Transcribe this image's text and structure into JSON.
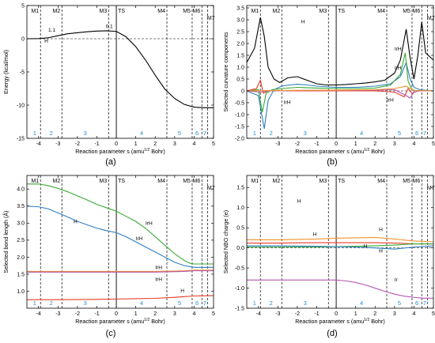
{
  "chart_data": [
    {
      "type": "line",
      "panel_label": "(a)",
      "ylabel": "Energy (kcal/mol)",
      "xlabel": "Reaction parameter s (amu",
      "xlabel_sup": "1/2",
      "xlabel_tail": " Bohr)",
      "xlim": [
        -4.6,
        5
      ],
      "ylim": [
        -15,
        5
      ],
      "xticks": [
        -4,
        -3,
        -2,
        -1,
        0,
        1,
        2,
        3,
        4,
        5
      ],
      "yticks": [
        -15,
        -10,
        -5,
        0,
        5
      ],
      "mlines": [
        {
          "x": -3.9,
          "label": "M1"
        },
        {
          "x": -2.8,
          "label": "M2"
        },
        {
          "x": -0.4,
          "label": "M3"
        },
        {
          "x": 0,
          "label": "TS",
          "solid": true
        },
        {
          "x": 2.6,
          "label": "M4"
        },
        {
          "x": 3.9,
          "label": "M5"
        },
        {
          "x": 4.4,
          "label": "M6"
        },
        {
          "x": 4.7,
          "label": "M7"
        }
      ],
      "regions": [
        {
          "x": -4.2,
          "label": "1"
        },
        {
          "x": -3.35,
          "label": "2"
        },
        {
          "x": -1.6,
          "label": "3"
        },
        {
          "x": 1.3,
          "label": "4"
        },
        {
          "x": 3.25,
          "label": "5"
        },
        {
          "x": 4.15,
          "label": "6"
        },
        {
          "x": 4.55,
          "label": "7"
        }
      ],
      "annotations": [
        {
          "text": "1.1",
          "x": -3.5,
          "y": 1.1
        },
        {
          "text": "0.1",
          "x": -0.55,
          "y": 1.6
        },
        {
          "text": "H",
          "x": -3.7,
          "y": -0.6
        }
      ],
      "series": [
        {
          "color": "#000000",
          "x": [
            -4.6,
            -4.0,
            -3.5,
            -3.0,
            -2.5,
            -2.0,
            -1.5,
            -1.0,
            -0.5,
            0.0,
            0.5,
            1.0,
            1.5,
            2.0,
            2.5,
            3.0,
            3.5,
            4.0,
            4.5,
            5.0
          ],
          "y": [
            0.0,
            0.02,
            0.15,
            0.45,
            0.75,
            0.9,
            1.05,
            1.15,
            1.2,
            1.1,
            0.3,
            -1.2,
            -3.2,
            -5.5,
            -7.6,
            -9.0,
            -9.9,
            -10.3,
            -10.4,
            -10.4
          ]
        }
      ]
    },
    {
      "type": "line",
      "panel_label": "(b)",
      "ylabel": "Selected curvature components",
      "xlabel": "Reaction parameter s (amu",
      "xlabel_sup": "1/2",
      "xlabel_tail": " Bohr)",
      "xlim": [
        -4.6,
        5
      ],
      "ylim": [
        -2,
        3.6
      ],
      "xticks": [
        -3,
        -2,
        -1,
        0,
        1,
        2,
        3,
        4,
        5
      ],
      "yticks": [
        -2.0,
        -1.5,
        -1.0,
        -0.5,
        0,
        0.5,
        1.0,
        1.5,
        2.0,
        2.5,
        3.0,
        3.5
      ],
      "mlines": [
        {
          "x": -3.9,
          "label": "M1"
        },
        {
          "x": -2.8,
          "label": "M2"
        },
        {
          "x": -0.4,
          "label": "M3"
        },
        {
          "x": 0,
          "label": "TS",
          "solid": true
        },
        {
          "x": 2.6,
          "label": "M4"
        },
        {
          "x": 3.9,
          "label": "M5"
        },
        {
          "x": 4.4,
          "label": "M6"
        },
        {
          "x": 4.7,
          "label": "M7"
        }
      ],
      "regions": [
        {
          "x": -4.2,
          "label": "1"
        },
        {
          "x": -3.35,
          "label": "2"
        },
        {
          "x": -1.6,
          "label": "3"
        },
        {
          "x": 1.3,
          "label": "4"
        },
        {
          "x": 3.25,
          "label": "5"
        },
        {
          "x": 4.15,
          "label": "6"
        },
        {
          "x": 4.55,
          "label": "7"
        }
      ],
      "annotations": [
        {
          "text": "H",
          "x": -1.8,
          "y": 2.85
        },
        {
          "text": "IrH",
          "x": -2.7,
          "y": -0.55
        },
        {
          "text": "IrH",
          "x": 3.0,
          "y": 1.7
        },
        {
          "text": "IrH",
          "x": 3.0,
          "y": 0.9
        },
        {
          "text": "IrH",
          "x": 2.6,
          "y": -0.45
        }
      ],
      "series": [
        {
          "color": "#000000",
          "x": [
            -4.6,
            -4.2,
            -3.9,
            -3.7,
            -3.5,
            -3.2,
            -2.9,
            -2.5,
            -2.0,
            -1.5,
            -1.0,
            -0.5,
            0.0,
            0.5,
            1.0,
            1.5,
            2.0,
            2.5,
            3.0,
            3.3,
            3.6,
            3.8,
            4.0,
            4.2,
            4.4,
            4.6,
            5.0
          ],
          "y": [
            1.2,
            1.8,
            3.1,
            2.3,
            1.0,
            0.5,
            0.35,
            0.55,
            0.6,
            0.45,
            0.3,
            0.25,
            0.25,
            0.27,
            0.3,
            0.33,
            0.38,
            0.45,
            0.75,
            1.3,
            2.6,
            1.4,
            0.5,
            1.5,
            2.9,
            1.6,
            1.3
          ]
        },
        {
          "color": "#2e7fc2",
          "x": [
            -4.6,
            -4.0,
            -3.7,
            -3.5,
            -3.2,
            -2.8,
            -2.4,
            -2.0,
            -1.5,
            -1.0,
            0.0,
            1.0,
            2.0,
            2.8,
            3.3,
            3.6,
            3.8,
            4.0,
            4.3,
            5.0
          ],
          "y": [
            0.0,
            -0.2,
            -1.6,
            -0.4,
            0.05,
            0.2,
            0.25,
            0.28,
            0.25,
            0.2,
            0.15,
            0.15,
            0.2,
            0.3,
            0.6,
            1.2,
            0.5,
            0.15,
            0.05,
            0.0
          ]
        },
        {
          "color": "#3aaa35",
          "x": [
            -4.6,
            -4.0,
            -3.8,
            -3.6,
            -3.3,
            -2.8,
            -2.0,
            -1.0,
            0.0,
            1.0,
            2.0,
            2.8,
            3.3,
            3.55,
            3.7,
            3.9,
            4.2,
            5.0
          ],
          "y": [
            0.0,
            0.05,
            -0.9,
            -0.1,
            0.05,
            0.1,
            0.15,
            0.12,
            0.1,
            0.1,
            0.12,
            0.25,
            0.7,
            1.6,
            0.4,
            0.05,
            0.0,
            0.0
          ]
        },
        {
          "color": "#e63c2a",
          "x": [
            -4.6,
            -4.1,
            -3.9,
            -3.75,
            -3.5,
            -3.0,
            -2.0,
            0.0,
            2.0,
            3.0,
            3.5,
            3.7,
            3.9,
            4.2,
            5.0
          ],
          "y": [
            0.0,
            0.1,
            0.45,
            -0.1,
            0.0,
            0.02,
            0.0,
            0.0,
            0.0,
            -0.05,
            -0.25,
            0.1,
            -0.1,
            0.0,
            0.0
          ]
        },
        {
          "color": "#b455b3",
          "x": [
            -4.6,
            -3.9,
            -3.5,
            -2.0,
            0.0,
            2.0,
            3.0,
            3.6,
            3.8,
            4.0,
            4.3,
            5.0
          ],
          "y": [
            0.0,
            -0.05,
            0.0,
            0.02,
            0.02,
            0.03,
            0.05,
            -0.2,
            -0.3,
            -0.05,
            0.0,
            0.0
          ]
        },
        {
          "color": "#f0922a",
          "x": [
            -4.6,
            -3.0,
            0.0,
            2.0,
            3.0,
            3.6,
            3.8,
            4.0,
            5.0
          ],
          "y": [
            0.0,
            0.02,
            0.03,
            0.05,
            0.1,
            0.2,
            0.1,
            0.02,
            0.0
          ]
        }
      ]
    },
    {
      "type": "line",
      "panel_label": "(c)",
      "ylabel": "Selected bond length (Å)",
      "xlabel": "Reaction parameter s (amu",
      "xlabel_sup": "1/2",
      "xlabel_tail": " Bohr)",
      "xlim": [
        -4.6,
        5
      ],
      "ylim": [
        0.5,
        4.4
      ],
      "xticks": [
        -4,
        -3,
        -2,
        -1,
        0,
        1,
        2,
        3,
        4,
        5
      ],
      "yticks": [
        1.0,
        1.5,
        2.0,
        2.5,
        3.0,
        3.5,
        4.0
      ],
      "mlines": [
        {
          "x": -3.9,
          "label": "M1"
        },
        {
          "x": -2.8,
          "label": "M2"
        },
        {
          "x": -0.4,
          "label": "M3"
        },
        {
          "x": 0,
          "label": "TS",
          "solid": true
        },
        {
          "x": 2.6,
          "label": "M4"
        },
        {
          "x": 3.9,
          "label": "M5"
        },
        {
          "x": 4.4,
          "label": "M6"
        },
        {
          "x": 4.7,
          "label": "M7"
        }
      ],
      "regions": [
        {
          "x": -4.2,
          "label": "1"
        },
        {
          "x": -3.35,
          "label": "2"
        },
        {
          "x": -1.6,
          "label": "3"
        },
        {
          "x": 1.3,
          "label": "4"
        },
        {
          "x": 3.25,
          "label": "5"
        },
        {
          "x": 4.15,
          "label": "6"
        },
        {
          "x": 4.55,
          "label": "7"
        }
      ],
      "annotations": [
        {
          "text": "IrH",
          "x": 1.5,
          "y": 2.95
        },
        {
          "text": "IrH",
          "x": 1.0,
          "y": 2.5
        },
        {
          "text": "IrH",
          "x": 2.0,
          "y": 1.65
        },
        {
          "text": "IrH",
          "x": 2.0,
          "y": 1.3
        },
        {
          "text": "H",
          "x": 3.3,
          "y": 0.97
        },
        {
          "text": "H",
          "x": -2.2,
          "y": 3.0
        }
      ],
      "series": [
        {
          "color": "#3aaa35",
          "x": [
            -4.6,
            -4.0,
            -3.5,
            -3.0,
            -2.5,
            -2.0,
            -1.5,
            -1.0,
            -0.5,
            0.0,
            0.5,
            1.0,
            1.5,
            2.0,
            2.5,
            3.0,
            3.5,
            3.8,
            4.0,
            4.5,
            5.0
          ],
          "y": [
            4.15,
            4.15,
            4.1,
            4.02,
            3.92,
            3.8,
            3.68,
            3.55,
            3.45,
            3.35,
            3.2,
            3.05,
            2.85,
            2.6,
            2.35,
            2.1,
            1.9,
            1.82,
            1.8,
            1.8,
            1.8
          ]
        },
        {
          "color": "#2e7fc2",
          "x": [
            -4.6,
            -4.0,
            -3.5,
            -3.0,
            -2.5,
            -2.0,
            -1.5,
            -1.0,
            -0.5,
            0.0,
            0.5,
            1.0,
            1.5,
            2.0,
            2.5,
            3.0,
            3.5,
            3.8,
            4.0,
            4.5,
            5.0
          ],
          "y": [
            3.5,
            3.48,
            3.42,
            3.3,
            3.18,
            3.05,
            2.95,
            2.85,
            2.78,
            2.72,
            2.6,
            2.45,
            2.3,
            2.15,
            2.0,
            1.85,
            1.75,
            1.72,
            1.7,
            1.7,
            1.7
          ]
        },
        {
          "color": "#f0922a",
          "x": [
            -4.6,
            -2.0,
            0.0,
            2.0,
            3.5,
            4.0,
            5.0
          ],
          "y": [
            1.58,
            1.58,
            1.58,
            1.58,
            1.6,
            1.62,
            1.62
          ]
        },
        {
          "color": "#b455b3",
          "x": [
            -4.6,
            -2.0,
            0.0,
            2.0,
            3.5,
            4.0,
            5.0
          ],
          "y": [
            1.56,
            1.56,
            1.56,
            1.56,
            1.58,
            1.6,
            1.6
          ]
        },
        {
          "color": "#e63c2a",
          "x": [
            -4.6,
            -3.0,
            -1.0,
            0.0,
            1.0,
            2.0,
            3.0,
            3.5,
            4.0,
            5.0
          ],
          "y": [
            0.75,
            0.75,
            0.76,
            0.77,
            0.78,
            0.79,
            0.82,
            0.84,
            0.86,
            0.87
          ]
        }
      ]
    },
    {
      "type": "line",
      "panel_label": "(d)",
      "ylabel": "Selected NBO charge (e)",
      "xlabel": "Reaction parameter s (amu",
      "xlabel_sup": "1/2",
      "xlabel_tail": " Bohr)",
      "xlim": [
        -4.6,
        5
      ],
      "ylim": [
        -1.5,
        1.8
      ],
      "xticks": [
        -4,
        -3,
        -2,
        -1,
        0,
        1,
        2,
        3,
        4,
        5
      ],
      "yticks": [
        -1.5,
        -1.0,
        -0.5,
        0.0,
        0.5,
        1.0,
        1.5
      ],
      "mlines": [
        {
          "x": -3.9,
          "label": "M1"
        },
        {
          "x": -2.8,
          "label": "M2"
        },
        {
          "x": -0.4,
          "label": "M3"
        },
        {
          "x": 0,
          "label": "TS",
          "solid": true
        },
        {
          "x": 2.6,
          "label": "M4"
        },
        {
          "x": 3.9,
          "label": "M5"
        },
        {
          "x": 4.4,
          "label": "M6"
        },
        {
          "x": 4.7,
          "label": "M7"
        }
      ],
      "regions": [
        {
          "x": -4.2,
          "label": "1"
        },
        {
          "x": -3.35,
          "label": "2"
        },
        {
          "x": -1.6,
          "label": "3"
        },
        {
          "x": 1.3,
          "label": "4"
        },
        {
          "x": 3.25,
          "label": "5"
        },
        {
          "x": 4.15,
          "label": "6"
        },
        {
          "x": 4.55,
          "label": "7"
        }
      ],
      "annotations": [
        {
          "text": "H",
          "x": -1.2,
          "y": 0.3
        },
        {
          "text": "H",
          "x": 2.2,
          "y": 0.42
        },
        {
          "text": "H",
          "x": 1.4,
          "y": 0.0
        },
        {
          "text": "H",
          "x": 2.2,
          "y": -0.12
        },
        {
          "text": "Ir",
          "x": 3.0,
          "y": -0.83
        },
        {
          "text": "H",
          "x": -2.0,
          "y": 1.12
        }
      ],
      "series": [
        {
          "color": "#f0922a",
          "x": [
            -4.6,
            -3.0,
            -1.0,
            0.0,
            1.0,
            2.0,
            3.0,
            4.0,
            5.0
          ],
          "y": [
            0.2,
            0.2,
            0.22,
            0.24,
            0.25,
            0.26,
            0.22,
            0.17,
            0.15
          ]
        },
        {
          "color": "#e63c2a",
          "x": [
            -4.6,
            -3.0,
            -1.0,
            0.0,
            1.0,
            2.0,
            3.0,
            4.0,
            5.0
          ],
          "y": [
            0.12,
            0.12,
            0.13,
            0.13,
            0.13,
            0.13,
            0.12,
            0.1,
            0.1
          ]
        },
        {
          "color": "#3aaa35",
          "x": [
            -4.6,
            -3.0,
            -1.0,
            0.0,
            1.0,
            2.0,
            3.0,
            4.0,
            5.0
          ],
          "y": [
            0.02,
            0.02,
            0.02,
            0.03,
            0.04,
            0.05,
            0.07,
            0.1,
            0.1
          ]
        },
        {
          "color": "#2e7fc2",
          "x": [
            -4.6,
            -3.0,
            -1.0,
            0.0,
            1.0,
            2.0,
            3.0,
            4.0,
            5.0
          ],
          "y": [
            0.05,
            0.05,
            0.04,
            0.03,
            0.02,
            0.0,
            -0.03,
            0.02,
            0.05
          ]
        },
        {
          "color": "#b455b3",
          "x": [
            -4.6,
            -4.0,
            -3.0,
            -2.0,
            -1.0,
            0.0,
            0.5,
            1.0,
            1.5,
            2.0,
            2.5,
            3.0,
            3.5,
            4.0,
            4.5,
            5.0
          ],
          "y": [
            -0.8,
            -0.8,
            -0.8,
            -0.8,
            -0.8,
            -0.8,
            -0.82,
            -0.86,
            -0.92,
            -1.0,
            -1.08,
            -1.15,
            -1.2,
            -1.23,
            -1.25,
            -1.25
          ]
        }
      ]
    }
  ]
}
